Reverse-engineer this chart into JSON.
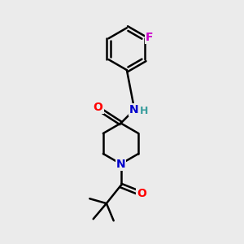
{
  "background_color": "#ebebeb",
  "bond_color": "#000000",
  "bond_width": 1.8,
  "atom_colors": {
    "O": "#ff0000",
    "N_amide": "#0000cc",
    "N_pip": "#0000cc",
    "H": "#3a9e9e",
    "F": "#cc00cc",
    "C": "#000000"
  },
  "font_size_atom": 10,
  "font_size_H": 9
}
